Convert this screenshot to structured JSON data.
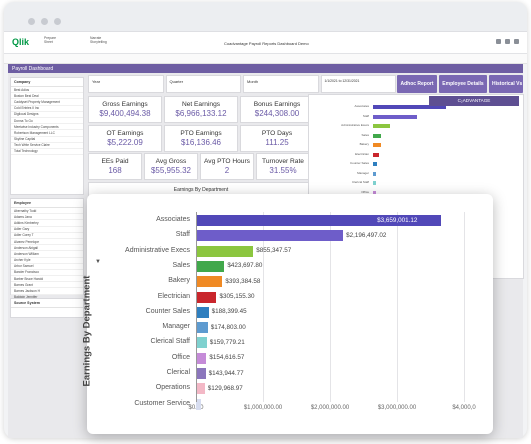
{
  "header": {
    "logo": "Qlik",
    "tabs": [
      {
        "top": "Prepare",
        "bottom": "Sheet"
      },
      {
        "top": "Narrate",
        "bottom": "Storytelling"
      }
    ],
    "title": "Coadvantage Payroll Reports Dashboard Demo"
  },
  "dashboard": {
    "title": "Payroll Dashboard",
    "filters": [
      "Year",
      "Quarter",
      "Month"
    ],
    "date_range": "1/1/2021 to 12/31/2021",
    "buttons": [
      "Adhoc Report",
      "Employee Details",
      "Historical Vs"
    ],
    "brand": "C₂ADVANTAGE",
    "kpis": [
      {
        "label": "Gross Earnings",
        "value": "$9,400,494.38"
      },
      {
        "label": "Net Earnings",
        "value": "$6,966,133.12"
      },
      {
        "label": "Bonus Earnings",
        "value": "$244,308.00"
      },
      {
        "label": "OT Earnings",
        "value": "$5,222.09"
      },
      {
        "label": "PTO Earnings",
        "value": "$16,136.46"
      },
      {
        "label": "PTO Days",
        "value": "111.25"
      },
      {
        "label": "EEs Paid",
        "value": "168"
      },
      {
        "label": "Avg Gross",
        "value": "$55,955.32"
      },
      {
        "label": "Avg PTO Hours",
        "value": "2"
      },
      {
        "label": "Turnover Rate",
        "value": "31.55%"
      }
    ],
    "earnings_by_dept_title": "Earnings By Department",
    "sidebar": {
      "company_title": "Company",
      "companies": [
        "Best Adios",
        "Boston Best Deal",
        "Caddyset Property Management",
        "Cold Entries II Inc",
        "Digilocal Designs",
        "Donna To Go",
        "Meetwise Industry Components",
        "Robertson Management LLC",
        "Skyline Capital",
        "Tech Write Service Claire",
        "Total Technology"
      ],
      "employee_title": "Employee",
      "employees": [
        "Abernathy Todd",
        "Adams Jana",
        "Adkins Kimberley",
        "Adler Gary",
        "Adler Corey T",
        "Alvarez Penelope",
        "Anderson Abigail",
        "Anderson William",
        "Archer Kyle",
        "Arbor Samuel",
        "Bander Francisco",
        "Barber Bruce Harold",
        "Barnes Grant",
        "Barnes Jackson H",
        "Baldwin Jennifer",
        "Benbenek Ryan",
        "Blair Mark E"
      ],
      "source_title": "Source System"
    }
  },
  "chart_data": {
    "type": "bar",
    "orientation": "horizontal",
    "title": "",
    "ylabel": "Earnings By Department",
    "xlabel": "",
    "xlim": [
      0,
      4000000
    ],
    "x_ticks": [
      "$0.00",
      "$1,000,000.00",
      "$2,000,000.00",
      "$3,000,000.00",
      "$4,000,0"
    ],
    "categories": [
      "Associates",
      "Staff",
      "Administrative Execs",
      "Sales",
      "Bakery",
      "Electrician",
      "Counter Sales",
      "Manager",
      "Clerical Staff",
      "Office",
      "Clerical",
      "Operations",
      "Customer Service"
    ],
    "values": [
      3659001.12,
      2196497.02,
      855347.57,
      423697.8,
      393384.58,
      305155.3,
      188399.45,
      174803.0,
      159779.21,
      154616.57,
      143944.77,
      129968.97,
      76000
    ],
    "labels": [
      "$3,659,001.12",
      "$2,196,497.02",
      "$855,347.57",
      "$423,697.80",
      "$393,384.58",
      "$305,155.30",
      "$188,399.45",
      "$174,803.00",
      "$159,779.21",
      "$154,616.57",
      "$143,944.77",
      "$129,968.97",
      ""
    ],
    "colors": [
      "#5148b8",
      "#6e5dc9",
      "#8cc63f",
      "#41a84b",
      "#f08a24",
      "#c9262c",
      "#2f7fbf",
      "#5e9bd0",
      "#7fd1cf",
      "#c58bd8",
      "#8b76bc",
      "#f3b8c6",
      "#d7ddf0"
    ]
  }
}
